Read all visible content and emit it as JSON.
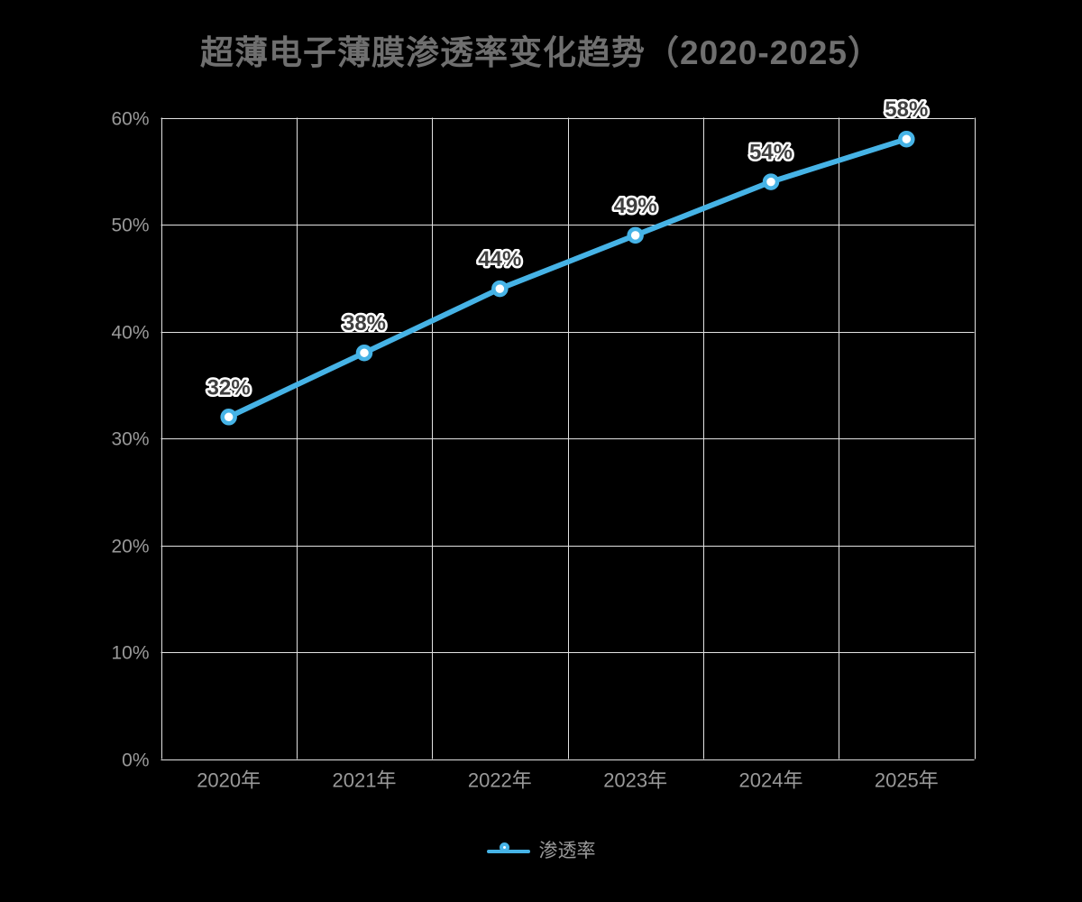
{
  "page": {
    "background": "#000000"
  },
  "chart_data": {
    "type": "line",
    "title": "超薄电子薄膜渗透率变化趋势（2020-2025）",
    "categories": [
      "2020年",
      "2021年",
      "2022年",
      "2023年",
      "2024年",
      "2025年"
    ],
    "series": [
      {
        "name": "渗透率",
        "values": [
          32,
          38,
          44,
          49,
          54,
          58
        ],
        "data_labels": [
          "32%",
          "38%",
          "44%",
          "49%",
          "54%",
          "58%"
        ]
      }
    ],
    "ylim": [
      0,
      60
    ],
    "ytick_values": [
      0,
      10,
      20,
      30,
      40,
      50,
      60
    ],
    "ytick_labels": [
      "0%",
      "10%",
      "20%",
      "30%",
      "40%",
      "50%",
      "60%"
    ],
    "grid": true,
    "legend_position": "bottom",
    "colors": {
      "background": "#000000",
      "title": "#6f6f6f",
      "axis_label": "#999999",
      "grid": "#e2e2e2",
      "line": "#46b3e6",
      "marker_fill": "#ffffff",
      "data_label": "#3f3f3f",
      "data_label_halo": "#ffffff"
    }
  }
}
